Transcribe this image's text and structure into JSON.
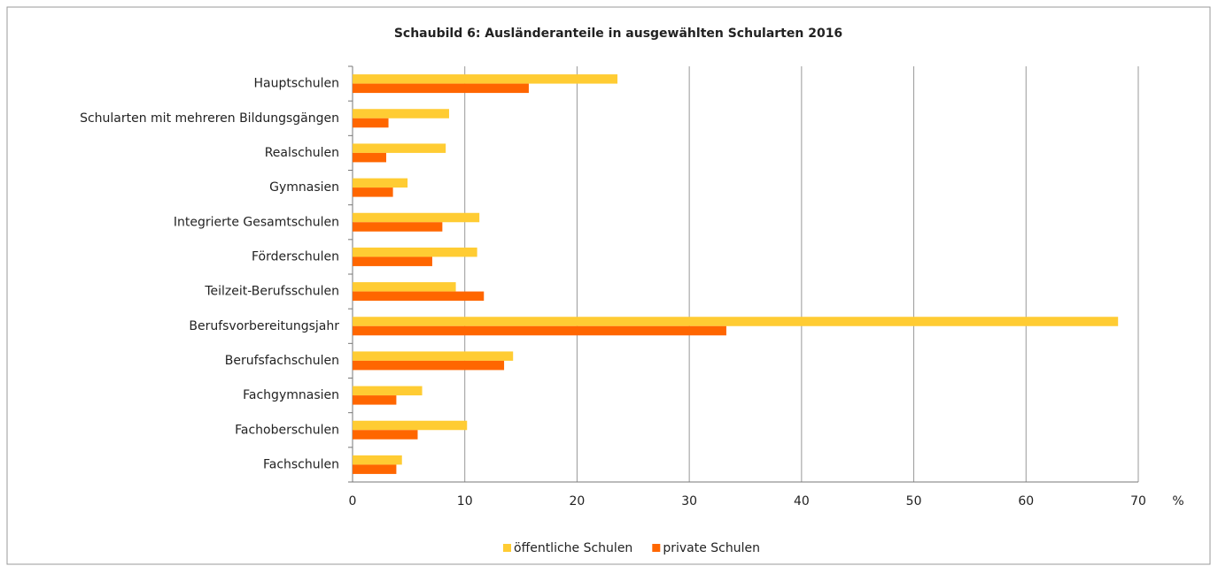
{
  "chart_data": {
    "type": "barh",
    "title": "Schaubild 6: Ausländeranteile in ausgewählten Schularten 2016",
    "x_unit": "%",
    "categories": [
      "Hauptschulen",
      "Schularten mit mehreren Bildungsgängen",
      "Realschulen",
      "Gymnasien",
      "Integrierte Gesamtschulen",
      "Förderschulen",
      "Teilzeit-Berufsschulen",
      "Berufsvorbereitungsjahr",
      "Berufsfachschulen",
      "Fachgymnasien",
      "Fachoberschulen",
      "Fachschulen"
    ],
    "series": [
      {
        "name": "öffentliche Schulen",
        "color": "#ffcc33",
        "values": [
          23.6,
          8.6,
          8.3,
          4.9,
          11.3,
          11.1,
          9.2,
          68.2,
          14.3,
          6.2,
          10.2,
          4.4
        ]
      },
      {
        "name": "private Schulen",
        "color": "#ff6600",
        "values": [
          15.7,
          3.2,
          3.0,
          3.6,
          8.0,
          7.1,
          11.7,
          33.3,
          13.5,
          3.9,
          5.8,
          3.9
        ]
      }
    ],
    "xlim": [
      0,
      70
    ],
    "xticks": [
      0,
      10,
      20,
      30,
      40,
      50,
      60,
      70
    ],
    "grid": true,
    "legend": "bottom"
  }
}
